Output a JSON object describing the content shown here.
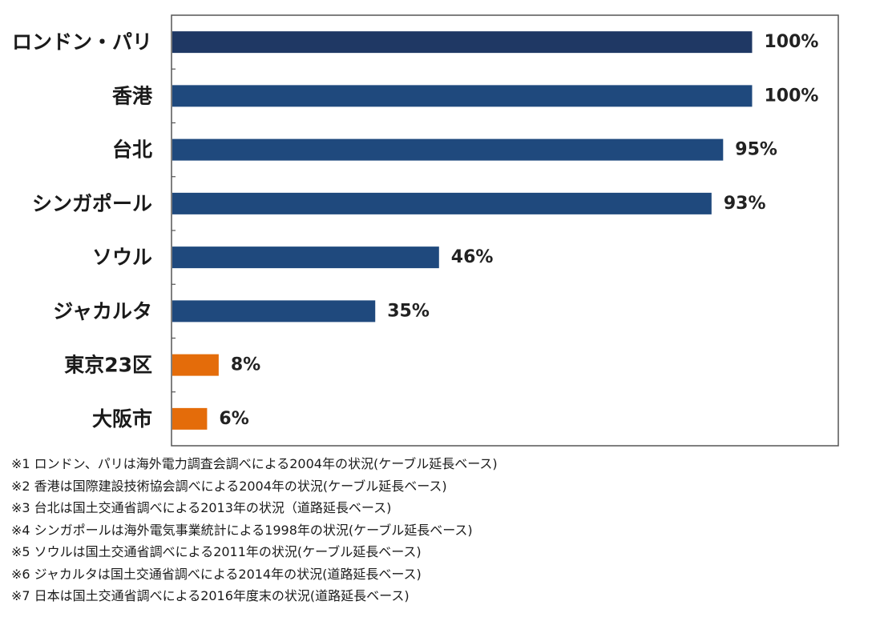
{
  "chart_data": {
    "type": "bar",
    "orientation": "horizontal",
    "categories": [
      "ロンドン・パリ",
      "香港",
      "台北",
      "シンガポール",
      "ソウル",
      "ジャカルタ",
      "東京23区",
      "大阪市"
    ],
    "values": [
      100,
      100,
      95,
      93,
      46,
      35,
      8,
      6
    ],
    "value_labels": [
      "100%",
      "100%",
      "95%",
      "93%",
      "46%",
      "35%",
      "8%",
      "6%"
    ],
    "bar_colors": [
      "#1f3864",
      "#1f497d",
      "#1f497d",
      "#1f497d",
      "#1f497d",
      "#1f497d",
      "#e46c0a",
      "#e46c0a"
    ],
    "xlim": [
      0,
      115
    ],
    "grid": false,
    "legend": "none",
    "title": "",
    "xlabel": "",
    "ylabel": ""
  },
  "notes": [
    "※1 ロンドン、パリは海外電力調査会調べによる2004年の状況(ケーブル延長ベース)",
    "※2 香港は国際建設技術協会調べによる2004年の状況(ケーブル延長ベース)",
    "※3 台北は国土交通省調べによる2013年の状況（道路延長ベース)",
    "※4 シンガポールは海外電気事業統計による1998年の状況(ケーブル延長ベース)",
    "※5 ソウルは国土交通省調べによる2011年の状況(ケーブル延長ベース)",
    "※6 ジャカルタは国土交通省調べによる2014年の状況(道路延長ベース)",
    "※7 日本は国土交通省調べによる2016年度末の状況(道路延長ベース)"
  ]
}
